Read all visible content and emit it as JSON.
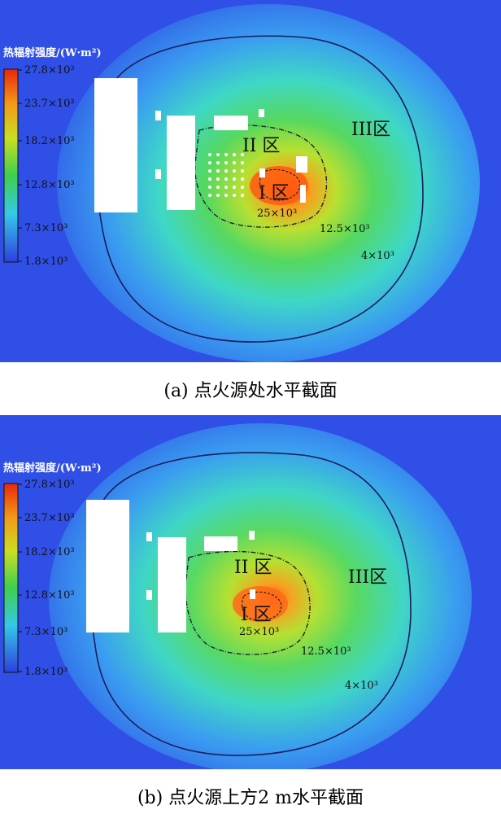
{
  "panels": [
    {
      "caption": "(a) 点火源处水平截面",
      "legend_title": "热辐射强度/(W·m²)",
      "legend_ticks": [
        "27.8×10³",
        "23.7×10³",
        "18.2×10³",
        "12.8×10³",
        "7.3×10³",
        "1.8×10³"
      ],
      "zones": {
        "zone1": "I 区",
        "zone2": "II 区",
        "zone3": "III区"
      },
      "contours": {
        "c1": "25×10³",
        "c2": "12.5×10³",
        "c3": "4×10³"
      }
    },
    {
      "caption": "(b) 点火源上方2 m水平截面",
      "legend_title": "热辐射强度/(W·m²)",
      "legend_ticks": [
        "27.8×10³",
        "23.7×10³",
        "18.2×10³",
        "12.8×10³",
        "7.3×10³",
        "1.8×10³"
      ],
      "zones": {
        "zone1": "I 区",
        "zone2": "II 区",
        "zone3": "III区"
      },
      "contours": {
        "c1": "25×10³",
        "c2": "12.5×10³",
        "c3": "4×10³"
      }
    }
  ],
  "colors": {
    "background": "#2f4fe6",
    "hot_center": "#ff4500",
    "contour_line": "#1a1a5c"
  }
}
